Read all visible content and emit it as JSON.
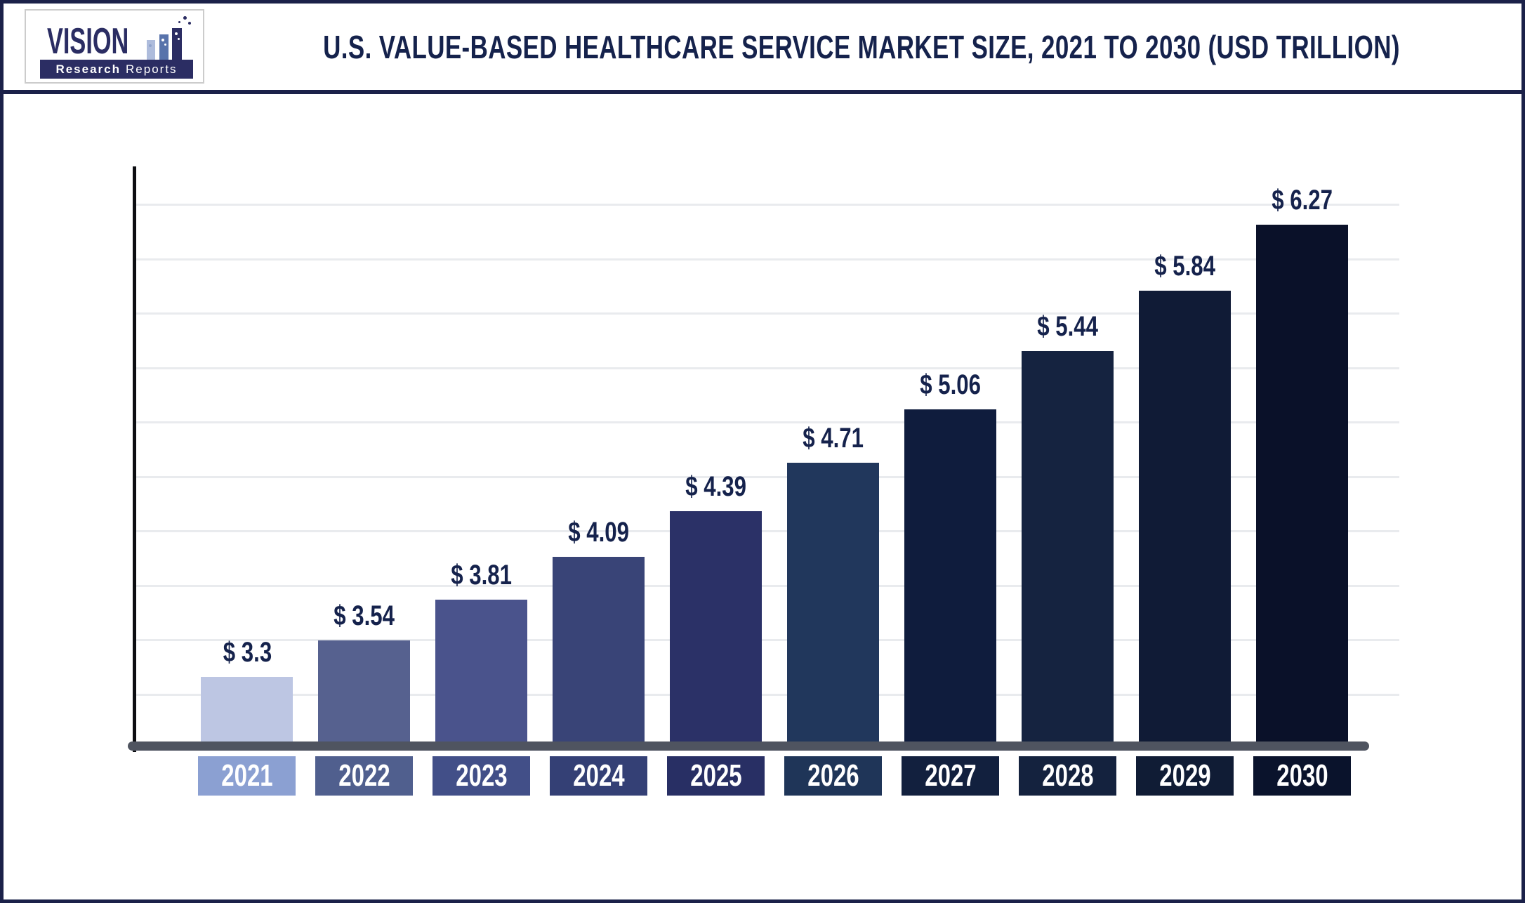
{
  "logo": {
    "brand": "VISION",
    "sub_bold": "Research",
    "sub_light": "Reports"
  },
  "header": {
    "title": "U.S. VALUE-BASED HEALTHCARE SERVICE MARKET SIZE, 2021 TO 2030 (USD TRILLION)"
  },
  "chart_data": {
    "type": "bar",
    "title": "U.S. VALUE-BASED HEALTHCARE SERVICE MARKET SIZE, 2021 TO 2030 (USD TRILLION)",
    "unit": "USD Trillion",
    "categories": [
      "2021",
      "2022",
      "2023",
      "2024",
      "2025",
      "2026",
      "2027",
      "2028",
      "2029",
      "2030"
    ],
    "values": [
      3.3,
      3.54,
      3.81,
      4.09,
      4.39,
      4.71,
      5.06,
      5.44,
      5.84,
      6.27
    ],
    "value_labels": [
      "$ 3.3",
      "$ 3.54",
      "$ 3.81",
      "$ 4.09",
      "$ 4.39",
      "$ 4.71",
      "$ 5.06",
      "$ 5.44",
      "$ 5.84",
      "$ 6.27"
    ],
    "xlabel": "",
    "ylabel": "",
    "ylim": [
      2.85,
      6.65
    ],
    "grid": "horizontal",
    "gridline_count": 10,
    "legend": "none",
    "bar_colors": [
      "#bdc6e3",
      "#56618f",
      "#4a538c",
      "#394477",
      "#2b3167",
      "#21375c",
      "#0f1c3d",
      "#152340",
      "#101b36",
      "#0a1129"
    ],
    "year_box_colors": [
      "#8ba0d2",
      "#505f8e",
      "#424f88",
      "#344075",
      "#282f64",
      "#1f3558",
      "#12203e",
      "#14223e",
      "#101c35",
      "#0a132c"
    ],
    "value_label_color": "#15224c",
    "axis_line_color": "#4f5460",
    "gridline_color": "#e9ebee"
  }
}
